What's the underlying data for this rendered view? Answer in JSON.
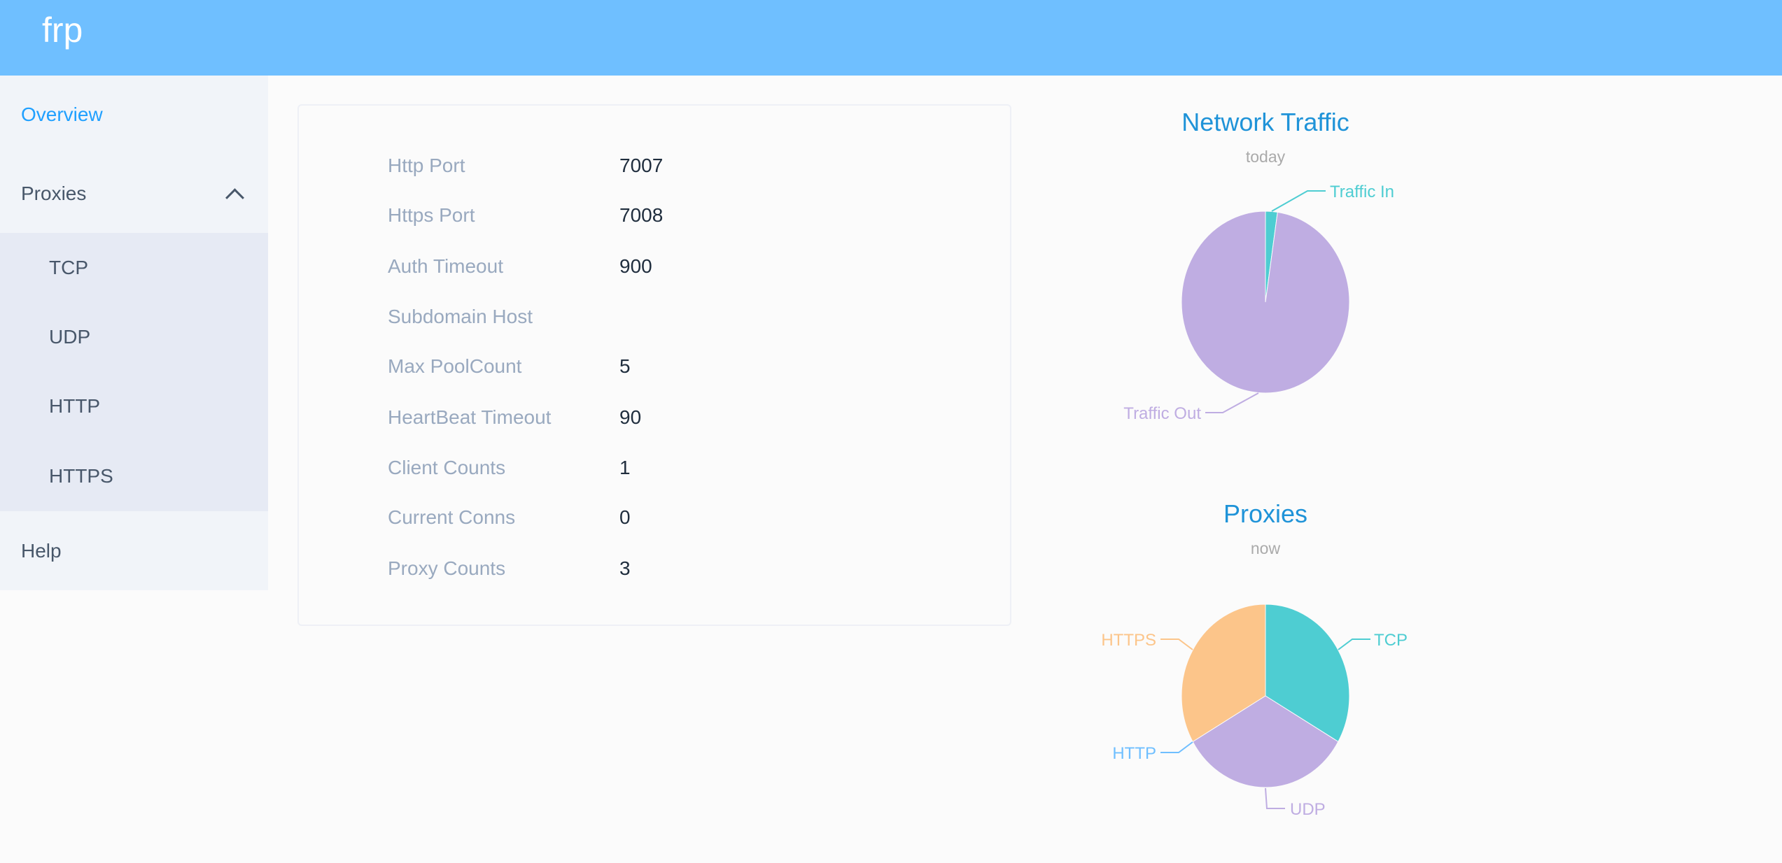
{
  "header": {
    "title": "frp"
  },
  "sidebar": {
    "items": [
      {
        "label": "Overview",
        "active": true
      },
      {
        "label": "Proxies",
        "expanded": true,
        "children": [
          {
            "label": "TCP"
          },
          {
            "label": "UDP"
          },
          {
            "label": "HTTP"
          },
          {
            "label": "HTTPS"
          }
        ]
      },
      {
        "label": "Help"
      }
    ],
    "icons": {
      "proxies_toggle": "chevron-up-icon"
    }
  },
  "server_info": [
    {
      "label": "Http Port",
      "value": "7007"
    },
    {
      "label": "Https Port",
      "value": "7008"
    },
    {
      "label": "Auth Timeout",
      "value": "900"
    },
    {
      "label": "Subdomain Host",
      "value": ""
    },
    {
      "label": "Max PoolCount",
      "value": "5"
    },
    {
      "label": "HeartBeat Timeout",
      "value": "90"
    },
    {
      "label": "Client Counts",
      "value": "1"
    },
    {
      "label": "Current Conns",
      "value": "0"
    },
    {
      "label": "Proxy Counts",
      "value": "3"
    }
  ],
  "colors": {
    "header": "#6fbfff",
    "active": "#20a0ff",
    "title": "#1f93d8"
  },
  "chart_data": [
    {
      "type": "pie",
      "title": "Network Traffic",
      "subtitle": "today",
      "categories": [
        "Traffic In",
        "Traffic Out"
      ],
      "values": [
        2.3,
        97.7
      ],
      "unit": "percent (estimated)",
      "colors": [
        "#4ecdd2",
        "#bfade2"
      ]
    },
    {
      "type": "pie",
      "title": "Proxies",
      "subtitle": "now",
      "categories": [
        "TCP",
        "UDP",
        "HTTP",
        "HTTPS"
      ],
      "values": [
        1,
        1,
        0,
        1
      ],
      "colors": [
        "#4ecdd2",
        "#bfade2",
        "#6fbfff",
        "#fcc58a"
      ]
    }
  ]
}
